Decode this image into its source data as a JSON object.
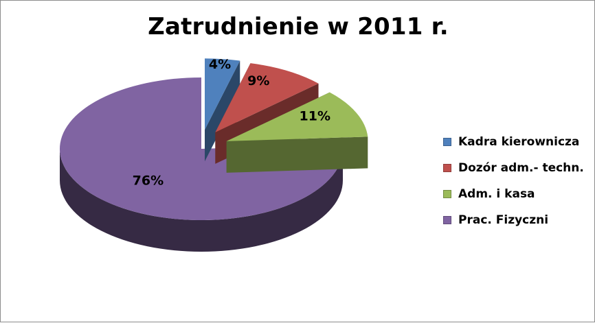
{
  "chart_data": {
    "type": "pie",
    "title": "Zatrudnienie w 2011 r.",
    "labels": [
      "Kadra kierownicza",
      "Dozór adm.- techn.",
      "Adm. i kasa",
      "Prac. Fizyczni"
    ],
    "values": [
      4,
      9,
      11,
      76
    ],
    "data_labels": [
      "4%",
      "9%",
      "11%",
      "76%"
    ],
    "colors": [
      "#4f81bd",
      "#c0504d",
      "#9bbb59",
      "#8064a2"
    ],
    "legend_position": "right",
    "style": "3d-exploded"
  }
}
